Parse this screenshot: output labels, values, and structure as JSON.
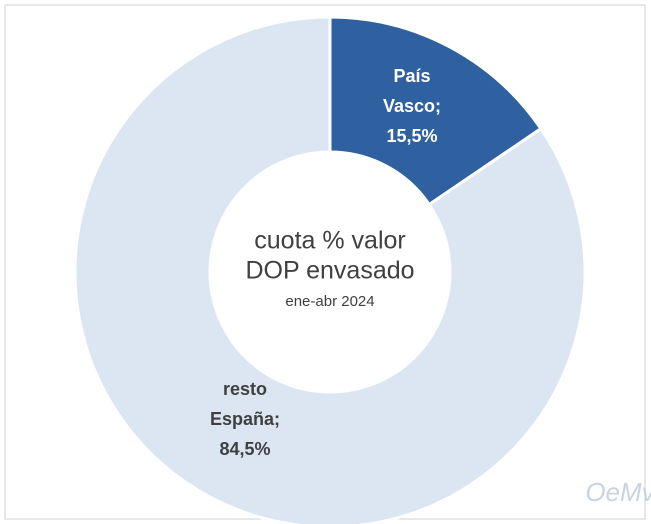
{
  "chart_data": {
    "type": "donut",
    "label_lines": [
      [
        "País",
        "Vasco;"
      ],
      [
        "resto",
        "España;"
      ]
    ],
    "values": [
      15.5,
      84.5
    ],
    "value_labels": [
      "15,5%",
      "84,5%"
    ],
    "colors": [
      "#2f609f",
      "#dce6f2"
    ],
    "center_text": [
      "cuota % valor",
      "DOP envasado"
    ],
    "center_subtext": "ene-abr 2024",
    "watermark": "OeMv"
  }
}
